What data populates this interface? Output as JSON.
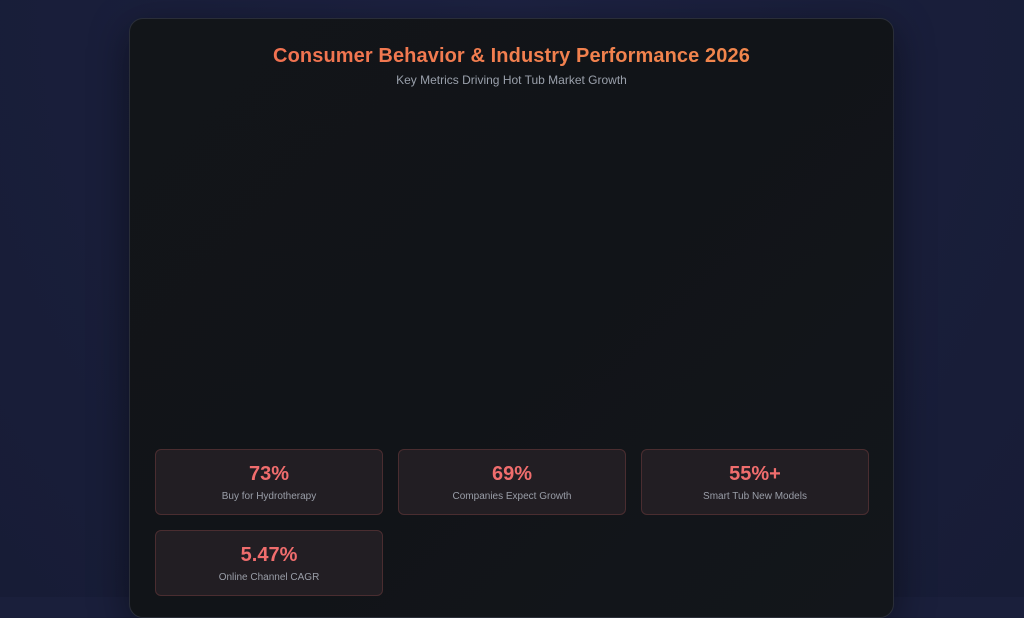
{
  "header": {
    "title": "Consumer Behavior & Industry Performance 2026",
    "subtitle": "Key Metrics Driving Hot Tub Market Growth"
  },
  "colors": {
    "title_gradient_start": "#f06a52",
    "title_gradient_end": "#f08a4a",
    "stat_value": "#f06d6d",
    "stat_label": "#9a9ea8",
    "card_bg": "#121519",
    "page_bg": "#1a1f3b"
  },
  "stats": [
    {
      "value": "73%",
      "label": "Buy for Hydrotherapy"
    },
    {
      "value": "69%",
      "label": "Companies Expect Growth"
    },
    {
      "value": "55%+",
      "label": "Smart Tub New Models"
    },
    {
      "value": "5.47%",
      "label": "Online Channel CAGR"
    }
  ],
  "chart_data": {
    "type": "table",
    "title": "Consumer Behavior & Industry Performance 2026",
    "subtitle": "Key Metrics Driving Hot Tub Market Growth",
    "categories": [
      "Buy for Hydrotherapy",
      "Companies Expect Growth",
      "Smart Tub New Models",
      "Online Channel CAGR"
    ],
    "values": [
      73,
      69,
      55,
      5.47
    ],
    "units": "%"
  }
}
